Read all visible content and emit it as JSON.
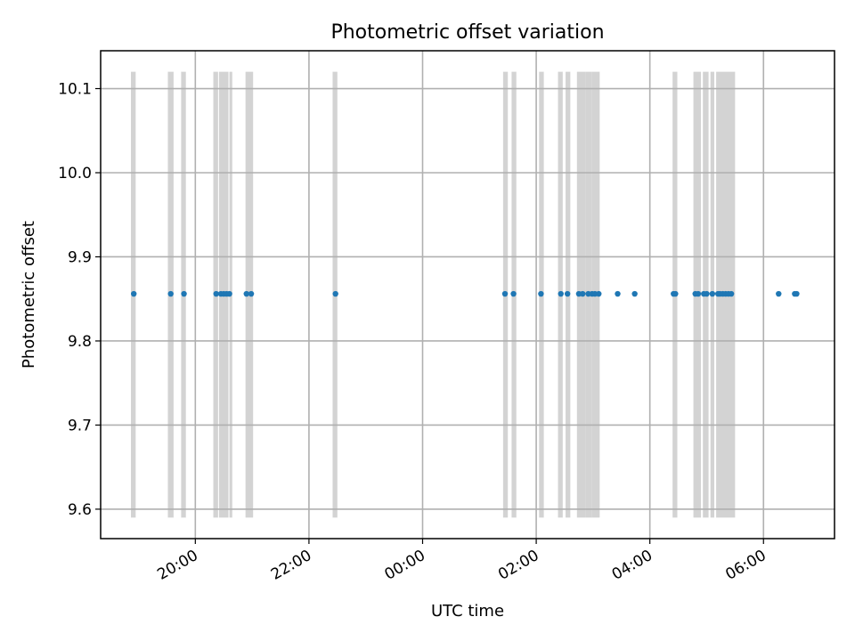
{
  "chart_data": {
    "type": "scatter",
    "title": "Photometric offset variation",
    "xlabel": "UTC time",
    "ylabel": "Photometric offset",
    "x_axis_type": "time (HH:MM, crosses midnight)",
    "xlim": [
      "18:20",
      "07:15"
    ],
    "ylim": [
      9.565,
      10.145
    ],
    "x_tick_labels": [
      "20:00",
      "22:00",
      "00:00",
      "02:00",
      "04:00",
      "06:00"
    ],
    "x_ticks": [
      "20:00",
      "22:00",
      "00:00",
      "02:00",
      "04:00",
      "06:00"
    ],
    "y_tick_labels": [
      "9.6",
      "9.7",
      "9.8",
      "9.9",
      "10.0",
      "10.1"
    ],
    "y_ticks": [
      9.6,
      9.7,
      9.8,
      9.9,
      10.0,
      10.1
    ],
    "grid": true,
    "legend": null,
    "band_range": [
      9.59,
      10.12
    ],
    "colors": {
      "points": "#1f77b4",
      "bands": "#d3d3d3",
      "grid": "#b0b0b0",
      "axes": "#000000"
    },
    "bands": [
      [
        "18:52",
        "18:57"
      ],
      [
        "19:31",
        "19:37"
      ],
      [
        "19:45",
        "19:50"
      ],
      [
        "20:19",
        "20:24"
      ],
      [
        "20:25",
        "20:35"
      ],
      [
        "20:36",
        "20:39"
      ],
      [
        "20:53",
        "21:01"
      ],
      [
        "22:25",
        "22:30"
      ],
      [
        "01:25",
        "01:30"
      ],
      [
        "01:34",
        "01:39"
      ],
      [
        "02:03",
        "02:08"
      ],
      [
        "02:23",
        "02:28"
      ],
      [
        "02:31",
        "02:36"
      ],
      [
        "02:43",
        "02:52"
      ],
      [
        "02:52",
        "02:59"
      ],
      [
        "02:59",
        "03:07"
      ],
      [
        "04:24",
        "04:29"
      ],
      [
        "04:46",
        "04:54"
      ],
      [
        "04:56",
        "05:02"
      ],
      [
        "05:04",
        "05:08"
      ],
      [
        "05:10",
        "05:30"
      ]
    ],
    "series": [
      {
        "x": [
          "18:55",
          "19:34",
          "19:48",
          "20:22",
          "20:27",
          "20:30",
          "20:33",
          "20:36",
          "20:54",
          "20:59",
          "22:28",
          "01:27",
          "01:36",
          "02:05",
          "02:26",
          "02:33",
          "02:45",
          "02:49",
          "02:55",
          "02:59",
          "03:02",
          "03:06",
          "03:26",
          "03:44",
          "04:25",
          "04:27",
          "04:48",
          "04:51",
          "04:57",
          "05:00",
          "05:06",
          "05:12",
          "05:14",
          "05:17",
          "05:20",
          "05:23",
          "05:26",
          "06:16",
          "06:33",
          "06:35"
        ],
        "y": [
          9.856,
          9.856,
          9.856,
          9.856,
          9.856,
          9.856,
          9.856,
          9.856,
          9.856,
          9.856,
          9.856,
          9.856,
          9.856,
          9.856,
          9.856,
          9.856,
          9.856,
          9.856,
          9.856,
          9.856,
          9.856,
          9.856,
          9.856,
          9.856,
          9.856,
          9.856,
          9.856,
          9.856,
          9.856,
          9.856,
          9.856,
          9.856,
          9.856,
          9.856,
          9.856,
          9.856,
          9.856,
          9.856,
          9.856,
          9.856
        ]
      }
    ]
  }
}
